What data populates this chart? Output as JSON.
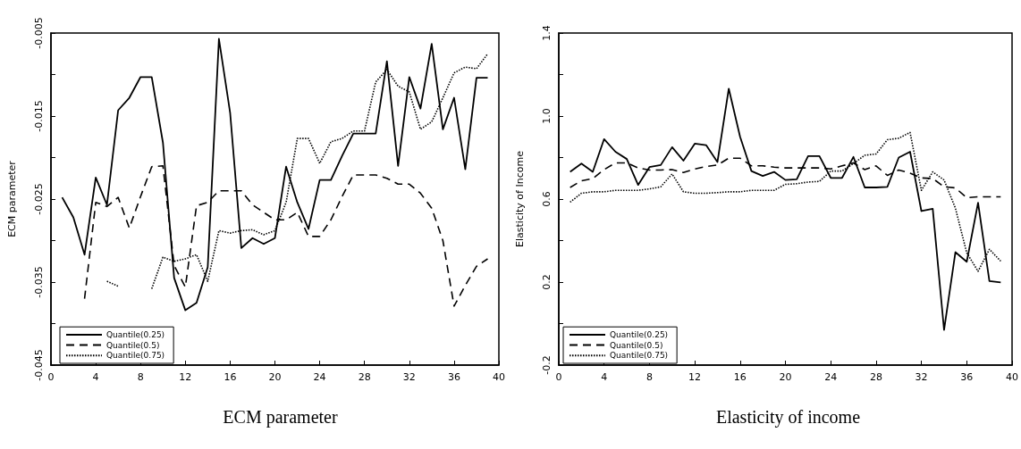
{
  "chart_data": [
    {
      "type": "line",
      "title": "ECM parameter",
      "ylabel": "ECM parameter",
      "legend": "bottom left",
      "marker": "none",
      "grid": false,
      "x": [
        1,
        2,
        3,
        4,
        5,
        6,
        7,
        8,
        9,
        10,
        11,
        12,
        13,
        14,
        15,
        16,
        17,
        18,
        19,
        20,
        21,
        22,
        23,
        24,
        25,
        26,
        27,
        28,
        29,
        30,
        31,
        32,
        33,
        34,
        35,
        36,
        37,
        38,
        39
      ],
      "xlim": [
        0,
        40
      ],
      "xticks": [
        0,
        4,
        8,
        12,
        16,
        20,
        24,
        28,
        32,
        36,
        40
      ],
      "ylim": [
        -0.045,
        -0.005
      ],
      "yticks": [
        -0.045,
        {
          "value": -0.04,
          "label": null
        },
        -0.035,
        {
          "value": -0.03,
          "label": null
        },
        -0.025,
        {
          "value": -0.02,
          "label": null
        },
        -0.015,
        {
          "value": -0.01,
          "label": null
        },
        -0.005
      ],
      "series": [
        {
          "name": "Quantile(0.25)",
          "color": "#000000",
          "line_style": "solid",
          "values": [
            -0.0248,
            -0.0272,
            -0.0317,
            -0.0224,
            -0.0257,
            -0.0143,
            -0.0128,
            -0.0103,
            -0.0103,
            -0.0182,
            -0.0345,
            -0.0384,
            -0.0375,
            -0.0332,
            -0.0057,
            -0.0146,
            -0.0309,
            -0.0297,
            -0.0304,
            -0.0297,
            -0.0211,
            -0.0254,
            -0.0286,
            -0.0227,
            -0.0227,
            -0.0198,
            -0.0171,
            -0.0171,
            -0.0171,
            -0.0084,
            -0.021,
            -0.0103,
            -0.0141,
            -0.0063,
            -0.0166,
            -0.0128,
            -0.0214,
            -0.0104,
            -0.0104
          ]
        },
        {
          "name": "Quantile(0.5)",
          "color": "#000000",
          "line_style": "dashed",
          "values": [
            null,
            null,
            -0.037,
            -0.0254,
            -0.0259,
            -0.0248,
            -0.0285,
            -0.0247,
            -0.0211,
            -0.021,
            -0.033,
            -0.0356,
            -0.0258,
            -0.0254,
            -0.024,
            -0.024,
            -0.024,
            -0.0257,
            -0.0266,
            -0.0275,
            -0.0275,
            -0.0266,
            -0.0295,
            -0.0295,
            -0.0275,
            -0.0247,
            -0.0221,
            -0.0221,
            -0.0221,
            -0.0225,
            -0.0232,
            -0.0232,
            -0.0243,
            -0.0261,
            -0.03,
            -0.0379,
            -0.0354,
            -0.0331,
            -0.0322
          ]
        },
        {
          "name": "Quantile(0.75)",
          "color": "#000000",
          "line_style": "dotted",
          "values": [
            null,
            null,
            null,
            null,
            -0.0349,
            -0.0355,
            null,
            null,
            -0.0358,
            -0.032,
            -0.0325,
            -0.0322,
            -0.0317,
            -0.0349,
            -0.0288,
            -0.0291,
            -0.0288,
            -0.0287,
            -0.0293,
            -0.0288,
            -0.0254,
            -0.0177,
            -0.0177,
            -0.0207,
            -0.0181,
            -0.0177,
            -0.0168,
            -0.0168,
            -0.0109,
            -0.0094,
            -0.0114,
            -0.0121,
            -0.0166,
            -0.0157,
            -0.0128,
            -0.0098,
            -0.0091,
            -0.0093,
            -0.0075
          ]
        }
      ]
    },
    {
      "type": "line",
      "title": "Elasticity of income",
      "ylabel": "Elasticity of Income",
      "legend": "bottom left",
      "marker": "none",
      "grid": false,
      "x": [
        1,
        2,
        3,
        4,
        5,
        6,
        7,
        8,
        9,
        10,
        11,
        12,
        13,
        14,
        15,
        16,
        17,
        18,
        19,
        20,
        21,
        22,
        23,
        24,
        25,
        26,
        27,
        28,
        29,
        30,
        31,
        32,
        33,
        34,
        35,
        36,
        37,
        38,
        39
      ],
      "xlim": [
        0,
        40
      ],
      "xticks": [
        0,
        4,
        8,
        12,
        16,
        20,
        24,
        28,
        32,
        36,
        40
      ],
      "ylim": [
        -0.2,
        1.4
      ],
      "yticks": [
        -0.2,
        {
          "value": 0,
          "label": null
        },
        0.2,
        {
          "value": 0.4,
          "label": null
        },
        0.6,
        {
          "value": 0.8,
          "label": null
        },
        {
          "value": 1,
          "label": "1.0"
        },
        {
          "value": 1.2,
          "label": null
        },
        1.4
      ],
      "series": [
        {
          "name": "Quantile(0.25)",
          "color": "#000000",
          "line_style": "solid",
          "values": [
            0.731,
            0.771,
            0.731,
            0.889,
            0.828,
            0.793,
            0.668,
            0.754,
            0.764,
            0.85,
            0.785,
            0.867,
            0.86,
            0.778,
            1.132,
            0.9,
            0.735,
            0.711,
            0.731,
            0.692,
            0.695,
            0.807,
            0.807,
            0.702,
            0.702,
            0.803,
            0.656,
            0.656,
            0.659,
            0.8,
            0.828,
            0.542,
            0.553,
            -0.031,
            0.344,
            0.298,
            0.582,
            0.205,
            0.198
          ]
        },
        {
          "name": "Quantile(0.5)",
          "color": "#000000",
          "line_style": "dashed",
          "values": [
            0.656,
            0.688,
            0.699,
            0.742,
            0.774,
            0.774,
            0.75,
            0.74,
            0.74,
            0.742,
            0.728,
            0.745,
            0.757,
            0.764,
            0.797,
            0.797,
            0.76,
            0.76,
            0.754,
            0.75,
            0.75,
            0.75,
            0.75,
            0.745,
            0.76,
            0.774,
            0.742,
            0.76,
            0.714,
            0.74,
            0.725,
            0.702,
            0.699,
            0.659,
            0.654,
            0.606,
            0.611,
            0.611,
            0.611
          ]
        },
        {
          "name": "Quantile(0.75)",
          "color": "#000000",
          "line_style": "dotted",
          "values": [
            0.585,
            0.628,
            0.635,
            0.635,
            0.642,
            0.642,
            0.642,
            0.649,
            0.659,
            0.721,
            0.635,
            0.628,
            0.628,
            0.631,
            0.635,
            0.635,
            0.642,
            0.642,
            0.642,
            0.671,
            0.674,
            0.682,
            0.685,
            0.735,
            0.735,
            0.771,
            0.811,
            0.817,
            0.886,
            0.893,
            0.921,
            0.642,
            0.731,
            0.692,
            0.556,
            0.341,
            0.252,
            0.358,
            0.301
          ]
        }
      ]
    }
  ]
}
